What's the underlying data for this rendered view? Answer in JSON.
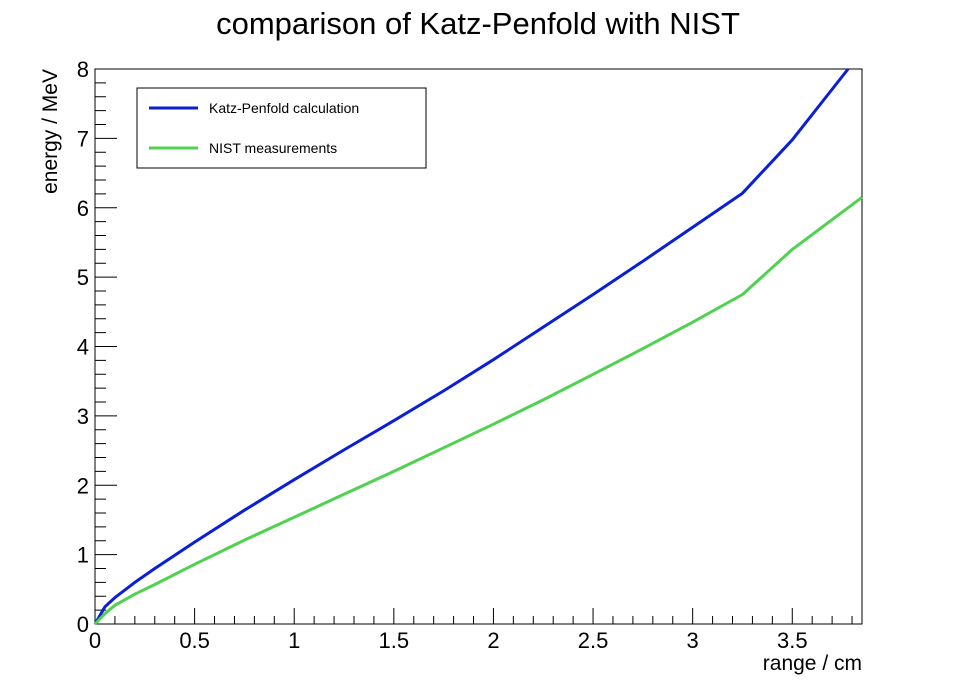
{
  "chart_data": {
    "type": "line",
    "title": "comparison of Katz-Penfold with NIST",
    "xlabel": "range / cm",
    "ylabel": "energy / MeV",
    "xlim": [
      0,
      3.85
    ],
    "ylim": [
      0,
      8
    ],
    "xticks": [
      0,
      0.5,
      1,
      1.5,
      2,
      2.5,
      3,
      3.5
    ],
    "xtick_labels": [
      "0",
      "0.5",
      "1",
      "1.5",
      "2",
      "2.5",
      "3",
      "3.5"
    ],
    "yticks": [
      0,
      1,
      2,
      3,
      4,
      5,
      6,
      7,
      8
    ],
    "ytick_labels": [
      "0",
      "1",
      "2",
      "3",
      "4",
      "5",
      "6",
      "7",
      "8"
    ],
    "legend_position": "top-left",
    "grid": false,
    "series": [
      {
        "name": "Katz-Penfold calculation",
        "color": "#0a1fd6",
        "x": [
          0,
          0.05,
          0.1,
          0.2,
          0.3,
          0.5,
          0.75,
          1.0,
          1.25,
          1.5,
          1.75,
          2.0,
          2.25,
          2.5,
          2.75,
          3.0,
          3.25,
          3.5,
          3.78
        ],
        "y": [
          0,
          0.25,
          0.38,
          0.6,
          0.8,
          1.18,
          1.64,
          2.08,
          2.51,
          2.93,
          3.36,
          3.81,
          4.28,
          4.75,
          5.23,
          5.72,
          6.21,
          6.98,
          8.0
        ]
      },
      {
        "name": "NIST measurements",
        "color": "#4fd24f",
        "x": [
          0,
          0.05,
          0.1,
          0.2,
          0.3,
          0.5,
          0.75,
          1.0,
          1.25,
          1.5,
          1.75,
          2.0,
          2.25,
          2.5,
          2.75,
          3.0,
          3.25,
          3.5,
          3.85
        ],
        "y": [
          0,
          0.15,
          0.27,
          0.43,
          0.57,
          0.86,
          1.21,
          1.54,
          1.87,
          2.2,
          2.54,
          2.88,
          3.23,
          3.6,
          3.97,
          4.35,
          4.75,
          5.4,
          6.15
        ]
      }
    ]
  }
}
